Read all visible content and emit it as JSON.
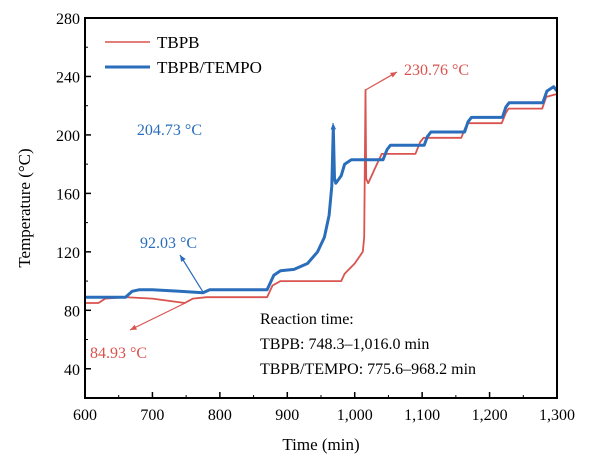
{
  "chart_data": {
    "type": "line",
    "title": "",
    "xlabel": "Time (min)",
    "ylabel": "Temperature (°C)",
    "xlim": [
      600,
      1300
    ],
    "ylim": [
      20,
      280
    ],
    "xticks": [
      600,
      700,
      800,
      900,
      1000,
      1100,
      1200,
      1300
    ],
    "xtick_labels": [
      "600",
      "700",
      "800",
      "900",
      "1,000",
      "1,100",
      "1,200",
      "1,300"
    ],
    "yticks": [
      40,
      80,
      120,
      160,
      200,
      240,
      280
    ],
    "ytick_labels": [
      "40",
      "80",
      "120",
      "160",
      "200",
      "240",
      "280"
    ],
    "grid": false,
    "legend_placement": "top-left",
    "series": [
      {
        "name": "TBPB",
        "color": "#d9534f",
        "x": [
          600,
          620,
          630,
          660,
          700,
          748,
          760,
          780,
          870,
          878,
          890,
          980,
          985,
          1000,
          1012,
          1014,
          1016,
          1017,
          1020,
          1030,
          1040,
          1090,
          1097,
          1102,
          1158,
          1164,
          1168,
          1218,
          1224,
          1228,
          1278,
          1284,
          1300
        ],
        "y": [
          85,
          85,
          88,
          89,
          88,
          85,
          88,
          89,
          89,
          97,
          100,
          100,
          105,
          112,
          120,
          130,
          230.76,
          170,
          167,
          177,
          187,
          187,
          195,
          198,
          198,
          205,
          208,
          208,
          215,
          218,
          218,
          226,
          228
        ]
      },
      {
        "name": "TBPB/TEMPO",
        "color": "#2a6ebb",
        "x": [
          600,
          660,
          670,
          680,
          700,
          740,
          775,
          785,
          800,
          870,
          880,
          890,
          910,
          930,
          945,
          955,
          962,
          966,
          968.2,
          970,
          972,
          980,
          985,
          995,
          1042,
          1048,
          1053,
          1103,
          1108,
          1113,
          1163,
          1168,
          1173,
          1219,
          1224,
          1229,
          1279,
          1285,
          1295,
          1300
        ],
        "y": [
          89,
          89,
          93,
          94,
          94,
          93,
          92.03,
          94,
          94,
          94,
          104,
          107,
          108,
          112,
          120,
          130,
          145,
          165,
          204.73,
          170,
          167,
          172,
          180,
          183,
          183,
          190,
          193,
          193,
          199,
          202,
          202,
          209,
          212,
          212,
          219,
          222,
          222,
          230,
          233,
          230
        ]
      }
    ],
    "annotations": [
      {
        "text": "204.73 °C",
        "color": "#2a6ebb",
        "point": [
          968.2,
          204.73
        ]
      },
      {
        "text": "230.76 °C",
        "color": "#d9534f",
        "point": [
          1016,
          230.76
        ]
      },
      {
        "text": "92.03 °C",
        "color": "#2a6ebb",
        "point": [
          775.6,
          92.03
        ]
      },
      {
        "text": "84.93 °C",
        "color": "#d9534f",
        "point": [
          748.3,
          84.93
        ]
      }
    ],
    "note": {
      "line1": "Reaction time:",
      "line2": "TBPB: 748.3–1,016.0 min",
      "line3": "TBPB/TEMPO: 775.6–968.2 min"
    }
  }
}
